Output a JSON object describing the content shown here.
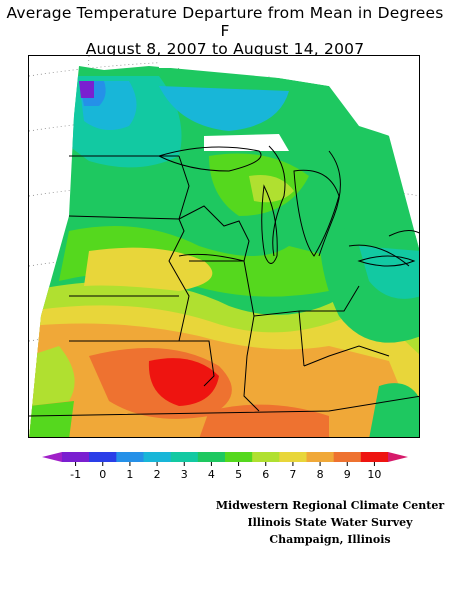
{
  "title": {
    "line1": "Average Temperature Departure from Mean in Degrees F",
    "line2": "August 8, 2007 to August 14, 2007"
  },
  "legend": {
    "ticks": [
      "-1",
      "0",
      "1",
      "2",
      "3",
      "4",
      "5",
      "6",
      "7",
      "8",
      "9",
      "10"
    ],
    "colors": [
      "#7a1fd0",
      "#2a3ee8",
      "#2590e8",
      "#18b6d8",
      "#12c9a2",
      "#1ec860",
      "#55d81e",
      "#b0e030",
      "#e8d63a",
      "#f0a838",
      "#ee7230",
      "#ee1410"
    ],
    "end_colors": {
      "low": "#a020c8",
      "high": "#d61a6a"
    }
  },
  "credits": [
    "Midwestern Regional Climate Center",
    "Illinois State Water Survey",
    "Champaign, Illinois"
  ]
}
